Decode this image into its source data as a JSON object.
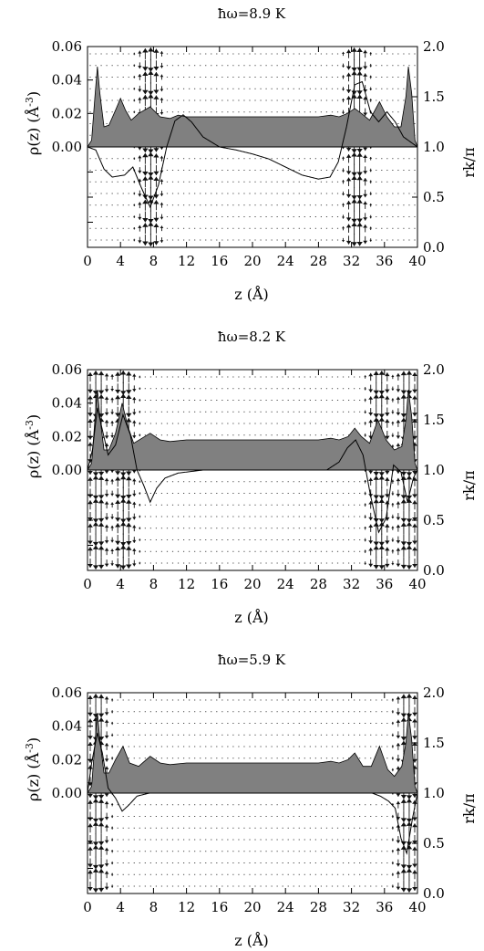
{
  "chart_data": [
    {
      "type": "area",
      "title": "ħω=8.9 K",
      "xlabel": "z (Å)",
      "ylabel": "ρ(z) (Å",
      "ylabel_sup": "-3",
      "ylabel_close": ")",
      "y2label": "rk/π",
      "xlim": [
        0,
        40
      ],
      "ylim": [
        0,
        0.06
      ],
      "y2lim": [
        0,
        2.0
      ],
      "xticks": [
        "0",
        "4",
        "8",
        "12",
        "16",
        "20",
        "24",
        "28",
        "32",
        "36",
        "40"
      ],
      "yticks": [
        "0.00",
        "0.02",
        "0.04",
        "0.06"
      ],
      "y2ticks": [
        "0.0",
        "0.5",
        "1.0",
        "1.5",
        "2.0"
      ],
      "grid": false,
      "density": [
        [
          0,
          0
        ],
        [
          0.5,
          0.004
        ],
        [
          0.9,
          0.03
        ],
        [
          1.2,
          0.048
        ],
        [
          1.5,
          0.032
        ],
        [
          2.0,
          0.012
        ],
        [
          2.6,
          0.013
        ],
        [
          3.4,
          0.022
        ],
        [
          4.0,
          0.029
        ],
        [
          4.6,
          0.022
        ],
        [
          5.3,
          0.016
        ],
        [
          6.2,
          0.02
        ],
        [
          7.6,
          0.024
        ],
        [
          8.8,
          0.018
        ],
        [
          10,
          0.017
        ],
        [
          11,
          0.019
        ],
        [
          12,
          0.018
        ],
        [
          16,
          0.018
        ],
        [
          20,
          0.018
        ],
        [
          24,
          0.018
        ],
        [
          28,
          0.018
        ],
        [
          29.5,
          0.019
        ],
        [
          30.5,
          0.018
        ],
        [
          31.5,
          0.02
        ],
        [
          32.4,
          0.023
        ],
        [
          33.2,
          0.02
        ],
        [
          34.2,
          0.016
        ],
        [
          35.4,
          0.027
        ],
        [
          36.3,
          0.018
        ],
        [
          37.2,
          0.012
        ],
        [
          38,
          0.012
        ],
        [
          38.6,
          0.03
        ],
        [
          38.9,
          0.048
        ],
        [
          39.3,
          0.032
        ],
        [
          39.7,
          0.004
        ],
        [
          40,
          0
        ]
      ],
      "mode_curve": [
        [
          0,
          1.0
        ],
        [
          1.0,
          0.97
        ],
        [
          2.0,
          0.78
        ],
        [
          3.0,
          0.7
        ],
        [
          4.5,
          0.72
        ],
        [
          5.5,
          0.8
        ],
        [
          6.5,
          0.6
        ],
        [
          7.6,
          0.4
        ],
        [
          8.6,
          0.62
        ],
        [
          9.6,
          1.0
        ],
        [
          10.6,
          1.26
        ],
        [
          11.6,
          1.32
        ],
        [
          12.6,
          1.25
        ],
        [
          14,
          1.1
        ],
        [
          16,
          1.0
        ],
        [
          18,
          0.97
        ],
        [
          20,
          0.93
        ],
        [
          22,
          0.88
        ],
        [
          24,
          0.8
        ],
        [
          26,
          0.72
        ],
        [
          28,
          0.68
        ],
        [
          29.4,
          0.7
        ],
        [
          30.4,
          0.85
        ],
        [
          31.4,
          1.2
        ],
        [
          32.4,
          1.62
        ],
        [
          33.3,
          1.65
        ],
        [
          34.3,
          1.35
        ],
        [
          35.3,
          1.25
        ],
        [
          36.3,
          1.35
        ],
        [
          37.3,
          1.25
        ],
        [
          38.3,
          1.1
        ],
        [
          40,
          1.0
        ]
      ],
      "arrow_centers": [
        7.6,
        32.6
      ]
    },
    {
      "type": "area",
      "title": "ħω=8.2 K",
      "xlabel": "z (Å)",
      "ylabel": "ρ(z) (Å",
      "ylabel_sup": "-3",
      "ylabel_close": ")",
      "y2label": "rk/π",
      "xlim": [
        0,
        40
      ],
      "ylim": [
        0,
        0.06
      ],
      "y2lim": [
        0,
        2.0
      ],
      "xticks": [
        "0",
        "4",
        "8",
        "12",
        "16",
        "20",
        "24",
        "28",
        "32",
        "36",
        "40"
      ],
      "yticks": [
        "0.00",
        "0.02",
        "0.04",
        "0.06"
      ],
      "y2ticks": [
        "0.0",
        "0.5",
        "1.0",
        "1.5",
        "2.0"
      ],
      "grid": false,
      "density": [
        [
          0,
          0
        ],
        [
          0.5,
          0.004
        ],
        [
          0.9,
          0.03
        ],
        [
          1.2,
          0.048
        ],
        [
          1.5,
          0.032
        ],
        [
          2.0,
          0.012
        ],
        [
          2.6,
          0.012
        ],
        [
          3.4,
          0.022
        ],
        [
          4.2,
          0.04
        ],
        [
          4.9,
          0.026
        ],
        [
          5.6,
          0.016
        ],
        [
          6.6,
          0.019
        ],
        [
          7.6,
          0.022
        ],
        [
          8.8,
          0.018
        ],
        [
          10,
          0.017
        ],
        [
          12,
          0.018
        ],
        [
          16,
          0.018
        ],
        [
          20,
          0.018
        ],
        [
          24,
          0.018
        ],
        [
          28,
          0.018
        ],
        [
          29.5,
          0.019
        ],
        [
          30.5,
          0.018
        ],
        [
          31.6,
          0.02
        ],
        [
          32.4,
          0.025
        ],
        [
          33.2,
          0.02
        ],
        [
          34.2,
          0.016
        ],
        [
          35.2,
          0.03
        ],
        [
          36.2,
          0.018
        ],
        [
          37.2,
          0.012
        ],
        [
          38.1,
          0.014
        ],
        [
          38.6,
          0.03
        ],
        [
          38.9,
          0.048
        ],
        [
          39.3,
          0.032
        ],
        [
          39.7,
          0.004
        ],
        [
          40,
          0
        ]
      ],
      "mode_curve": [
        [
          0,
          1.0
        ],
        [
          0.6,
          1.2
        ],
        [
          1.2,
          1.62
        ],
        [
          1.8,
          1.4
        ],
        [
          2.5,
          1.15
        ],
        [
          3.4,
          1.25
        ],
        [
          4.3,
          1.55
        ],
        [
          5.2,
          1.35
        ],
        [
          6.0,
          1.0
        ],
        [
          6.8,
          0.85
        ],
        [
          7.6,
          0.68
        ],
        [
          8.4,
          0.82
        ],
        [
          9.4,
          0.92
        ],
        [
          11,
          0.97
        ],
        [
          14,
          1.0
        ],
        [
          20,
          1.0
        ],
        [
          26,
          1.0
        ],
        [
          29,
          1.0
        ],
        [
          30.5,
          1.08
        ],
        [
          31.5,
          1.22
        ],
        [
          32.5,
          1.3
        ],
        [
          33.4,
          1.15
        ],
        [
          34.3,
          0.75
        ],
        [
          35.3,
          0.38
        ],
        [
          36.2,
          0.52
        ],
        [
          37.1,
          1.05
        ],
        [
          38.0,
          0.98
        ],
        [
          38.8,
          0.68
        ],
        [
          39.5,
          0.92
        ],
        [
          40,
          1.0
        ]
      ],
      "arrow_centers": [
        1.2,
        4.4,
        35.4,
        38.8
      ]
    },
    {
      "type": "area",
      "title": "ħω=5.9 K",
      "xlabel": "z (Å)",
      "ylabel": "ρ(z) (Å",
      "ylabel_sup": "-3",
      "ylabel_close": ")",
      "y2label": "rk/π",
      "xlim": [
        0,
        40
      ],
      "ylim": [
        0,
        0.06
      ],
      "y2lim": [
        0,
        2.0
      ],
      "xticks": [
        "0",
        "4",
        "8",
        "12",
        "16",
        "20",
        "24",
        "28",
        "32",
        "36",
        "40"
      ],
      "yticks": [
        "0.00",
        "0.02",
        "0.04",
        "0.06"
      ],
      "y2ticks": [
        "0.0",
        "0.5",
        "1.0",
        "1.5",
        "2.0"
      ],
      "grid": false,
      "density": [
        [
          0,
          0
        ],
        [
          0.5,
          0.004
        ],
        [
          0.9,
          0.03
        ],
        [
          1.2,
          0.048
        ],
        [
          1.5,
          0.032
        ],
        [
          2.0,
          0.012
        ],
        [
          2.6,
          0.012
        ],
        [
          3.4,
          0.02
        ],
        [
          4.3,
          0.028
        ],
        [
          5.1,
          0.018
        ],
        [
          6.2,
          0.016
        ],
        [
          7.6,
          0.022
        ],
        [
          8.8,
          0.018
        ],
        [
          10,
          0.017
        ],
        [
          12,
          0.018
        ],
        [
          16,
          0.018
        ],
        [
          20,
          0.018
        ],
        [
          24,
          0.018
        ],
        [
          28,
          0.018
        ],
        [
          29.5,
          0.019
        ],
        [
          30.5,
          0.018
        ],
        [
          31.6,
          0.02
        ],
        [
          32.4,
          0.024
        ],
        [
          33.4,
          0.016
        ],
        [
          34.4,
          0.016
        ],
        [
          35.4,
          0.028
        ],
        [
          36.4,
          0.014
        ],
        [
          37.2,
          0.01
        ],
        [
          38.1,
          0.016
        ],
        [
          38.6,
          0.03
        ],
        [
          38.9,
          0.048
        ],
        [
          39.3,
          0.032
        ],
        [
          39.7,
          0.004
        ],
        [
          40,
          0
        ]
      ],
      "mode_curve": [
        [
          0,
          1.0
        ],
        [
          0.5,
          1.3
        ],
        [
          1.2,
          1.6
        ],
        [
          1.8,
          1.4
        ],
        [
          2.5,
          1.05
        ],
        [
          3.4,
          0.95
        ],
        [
          4.2,
          0.82
        ],
        [
          5.0,
          0.88
        ],
        [
          6.0,
          0.97
        ],
        [
          7.5,
          1.0
        ],
        [
          12,
          1.0
        ],
        [
          20,
          1.0
        ],
        [
          28,
          1.0
        ],
        [
          32,
          1.0
        ],
        [
          34.5,
          1.0
        ],
        [
          35.5,
          0.97
        ],
        [
          36.5,
          0.92
        ],
        [
          37.3,
          0.85
        ],
        [
          38.0,
          0.55
        ],
        [
          38.7,
          0.4
        ],
        [
          39.4,
          0.75
        ],
        [
          40,
          1.0
        ]
      ],
      "arrow_centers": [
        1.2,
        38.8
      ]
    }
  ]
}
